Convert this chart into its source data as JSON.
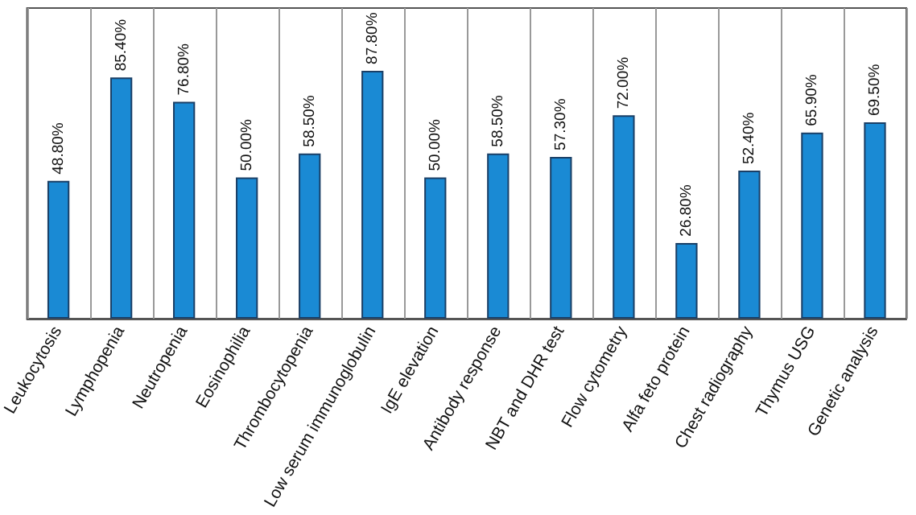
{
  "chart_data": {
    "type": "bar",
    "categories": [
      "Leukocytosis",
      "Lymphopenia",
      "Neutropenia",
      "Eosinophilia",
      "Thrombocytopenia",
      "Low serum immunoglobulin",
      "IgE elevation",
      "Antibody response",
      "NBT and DHR test",
      "Flow cytometry",
      "Alfa feto protein",
      "Chest radiography",
      "Thymus USG",
      "Genetic analysis"
    ],
    "values": [
      48.8,
      85.4,
      76.8,
      50,
      58.5,
      87.8,
      50,
      58.5,
      57.3,
      72,
      26.8,
      52.4,
      65.9,
      69.5
    ],
    "value_labels": [
      "48.80%",
      "85.40%",
      "76.80%",
      "50.00%",
      "58.50%",
      "87.80%",
      "50.00%",
      "58.50%",
      "57.30%",
      "72.00%",
      "26.80%",
      "52.40%",
      "65.90%",
      "69.50%"
    ],
    "color": "#1a8ad4",
    "ylim": [
      0,
      110
    ],
    "tick_labels": "x",
    "grid": "x"
  }
}
